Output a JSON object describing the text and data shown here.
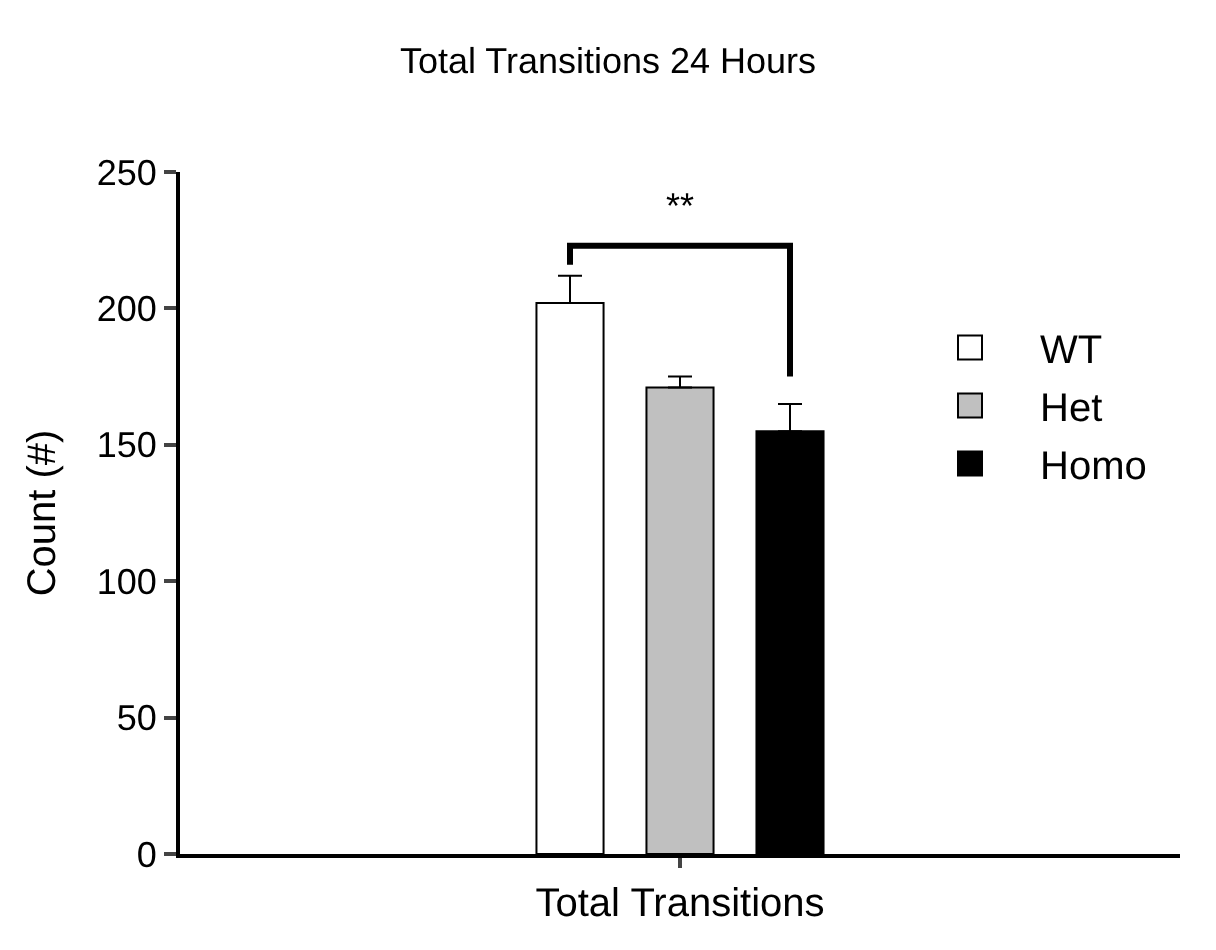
{
  "chart_data": {
    "type": "bar",
    "title": "Total Transitions 24 Hours",
    "ylabel": "Count (#)",
    "categories": [
      "Total Transitions"
    ],
    "series": [
      {
        "name": "WT",
        "color": "#ffffff",
        "values": [
          202
        ],
        "errors": [
          [
            202,
            212
          ]
        ]
      },
      {
        "name": "Het",
        "color": "#c0c0c0",
        "values": [
          171
        ],
        "errors": [
          [
            171,
            175
          ]
        ]
      },
      {
        "name": "Homo",
        "color": "#000000",
        "values": [
          155
        ],
        "errors": [
          [
            155,
            165
          ]
        ]
      }
    ],
    "ylim": [
      0,
      250
    ],
    "yticks": [
      0,
      50,
      100,
      150,
      200,
      250
    ],
    "legend": "right",
    "annotations": [
      "**"
    ]
  }
}
